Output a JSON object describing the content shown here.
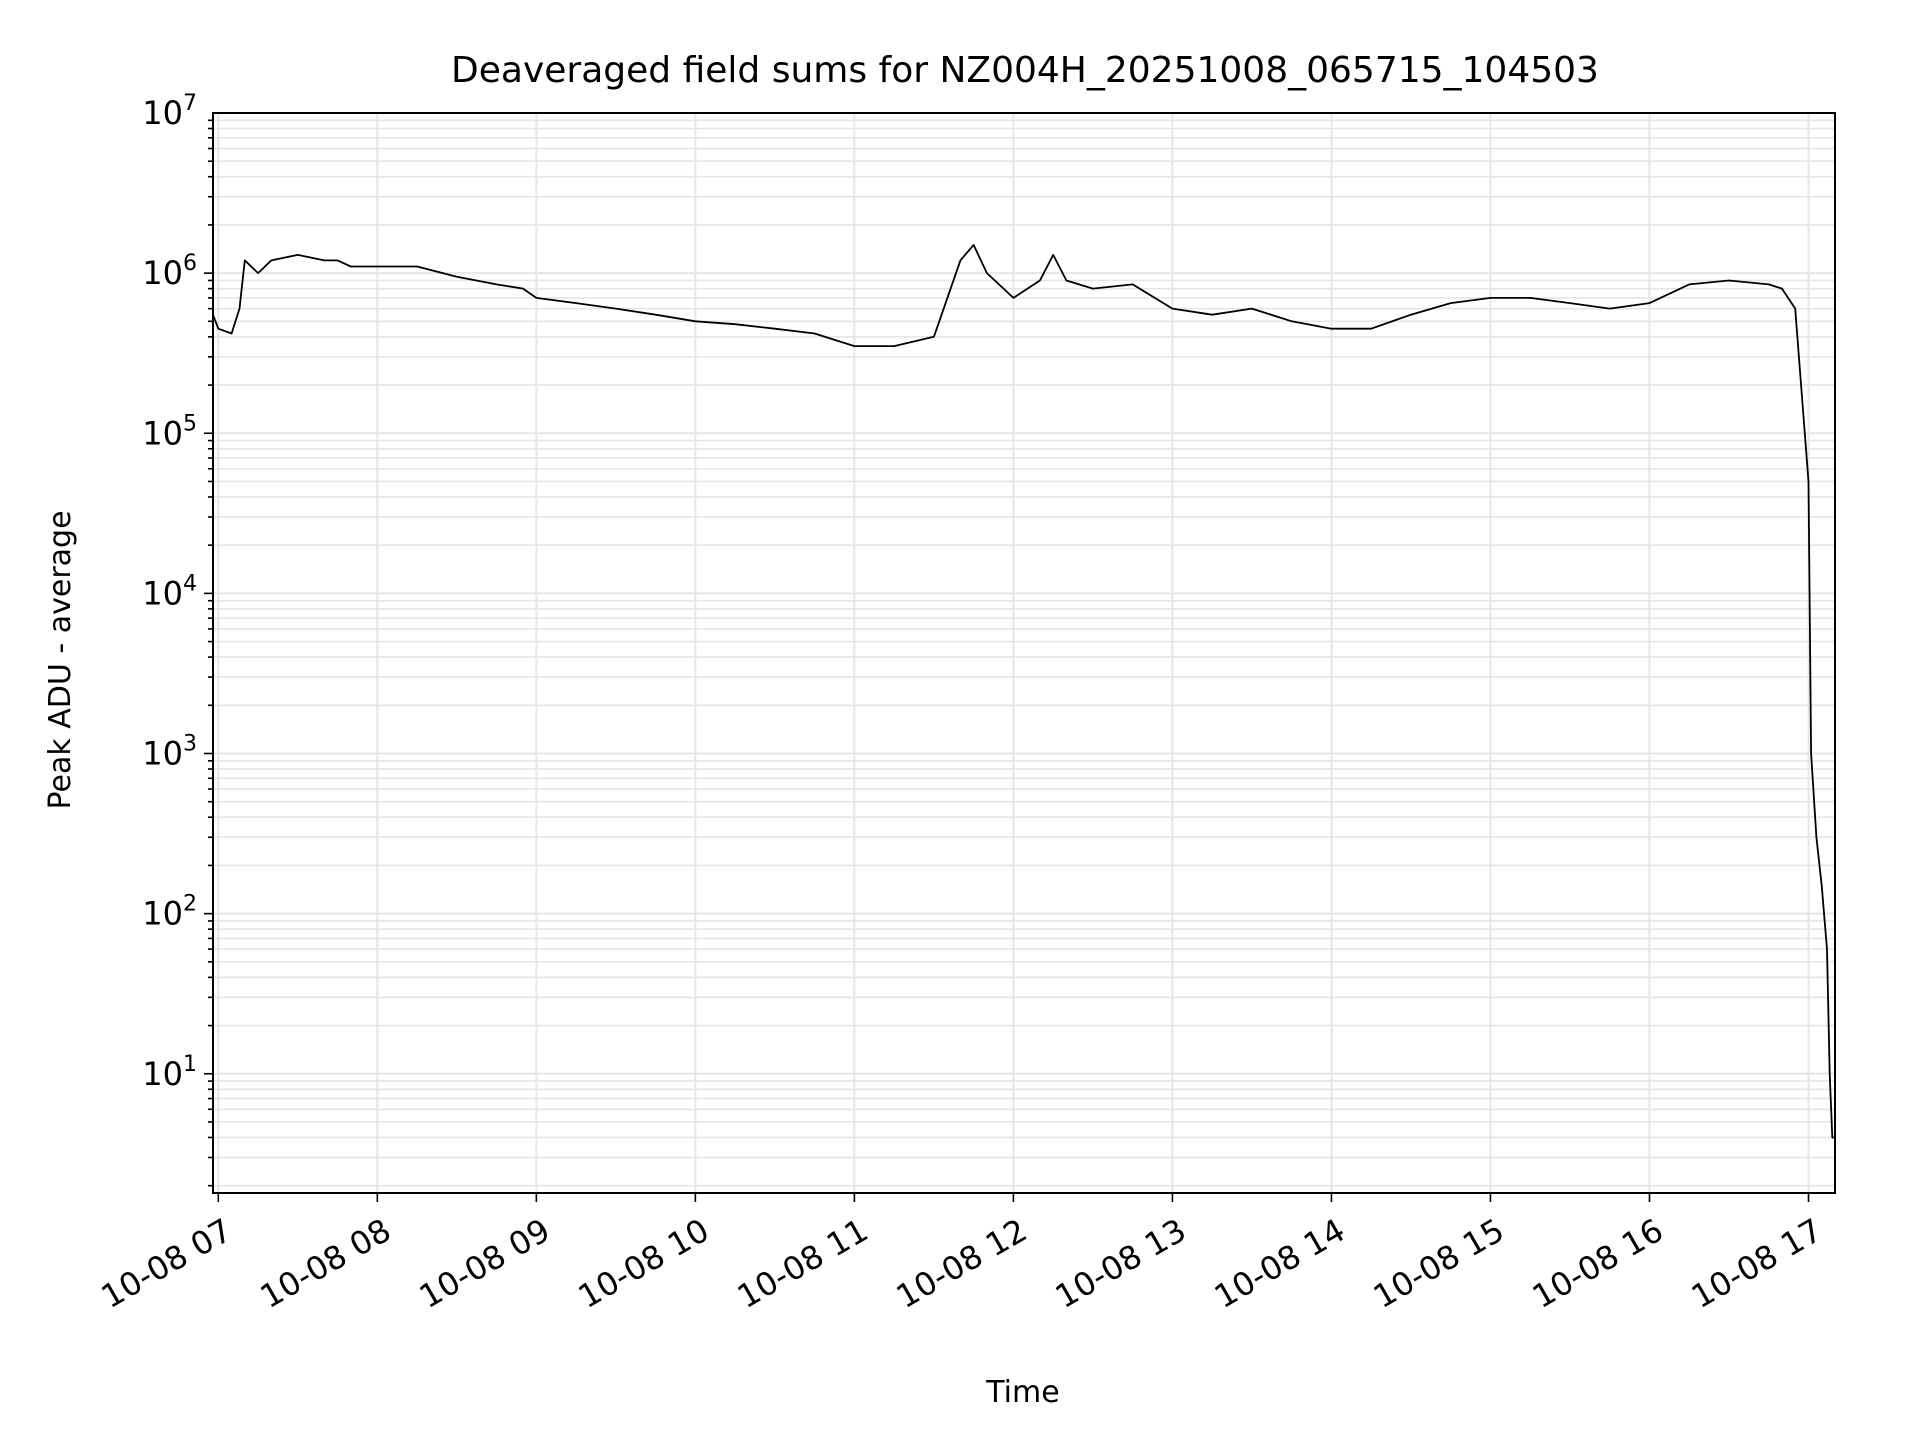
{
  "chart_data": {
    "type": "line",
    "title": "Deaveraged field sums for NZ004H_20251008_065715_104503",
    "xlabel": "Time",
    "ylabel": "Peak ADU - average",
    "yscale": "log",
    "ylim": [
      1.8,
      10000000
    ],
    "xlim": [
      "10-08 06:58",
      "10-08 17:10"
    ],
    "grid": true,
    "grid_color": "#e6e6e6",
    "line_color": "#000000",
    "x_ticks": [
      "10-08 07",
      "10-08 08",
      "10-08 09",
      "10-08 10",
      "10-08 11",
      "10-08 12",
      "10-08 13",
      "10-08 14",
      "10-08 15",
      "10-08 16",
      "10-08 17"
    ],
    "y_ticks": [
      {
        "base": "10",
        "exp": "1"
      },
      {
        "base": "10",
        "exp": "2"
      },
      {
        "base": "10",
        "exp": "3"
      },
      {
        "base": "10",
        "exp": "4"
      },
      {
        "base": "10",
        "exp": "5"
      },
      {
        "base": "10",
        "exp": "6"
      },
      {
        "base": "10",
        "exp": "7"
      }
    ],
    "series": [
      {
        "x": [
          "10-08 06:58",
          "10-08 07:00",
          "10-08 07:05",
          "10-08 07:08",
          "10-08 07:10",
          "10-08 07:15",
          "10-08 07:20",
          "10-08 07:30",
          "10-08 07:40",
          "10-08 07:45",
          "10-08 07:50",
          "10-08 08:00",
          "10-08 08:15",
          "10-08 08:30",
          "10-08 08:45",
          "10-08 08:55",
          "10-08 09:00",
          "10-08 09:15",
          "10-08 09:30",
          "10-08 09:45",
          "10-08 10:00",
          "10-08 10:15",
          "10-08 10:30",
          "10-08 10:45",
          "10-08 11:00",
          "10-08 11:15",
          "10-08 11:30",
          "10-08 11:40",
          "10-08 11:45",
          "10-08 11:50",
          "10-08 12:00",
          "10-08 12:10",
          "10-08 12:15",
          "10-08 12:20",
          "10-08 12:30",
          "10-08 12:45",
          "10-08 13:00",
          "10-08 13:15",
          "10-08 13:30",
          "10-08 13:45",
          "10-08 14:00",
          "10-08 14:15",
          "10-08 14:30",
          "10-08 14:45",
          "10-08 15:00",
          "10-08 15:15",
          "10-08 15:30",
          "10-08 15:45",
          "10-08 16:00",
          "10-08 16:15",
          "10-08 16:30",
          "10-08 16:45",
          "10-08 16:50",
          "10-08 16:55",
          "10-08 17:00",
          "10-08 17:01",
          "10-08 17:03",
          "10-08 17:05",
          "10-08 17:07",
          "10-08 17:08",
          "10-08 17:09",
          "10-08 17:10"
        ],
        "y": [
          550000,
          450000,
          420000,
          600000,
          1200000,
          1000000,
          1200000,
          1300000,
          1200000,
          1200000,
          1100000,
          1100000,
          1100000,
          950000,
          850000,
          800000,
          700000,
          650000,
          600000,
          550000,
          500000,
          480000,
          450000,
          420000,
          350000,
          350000,
          400000,
          1200000,
          1500000,
          1000000,
          700000,
          900000,
          1300000,
          900000,
          800000,
          850000,
          600000,
          550000,
          600000,
          500000,
          450000,
          450000,
          550000,
          650000,
          700000,
          700000,
          650000,
          600000,
          650000,
          850000,
          900000,
          850000,
          800000,
          600000,
          50000,
          1000,
          300,
          150,
          60,
          10,
          4,
          4
        ]
      }
    ]
  }
}
